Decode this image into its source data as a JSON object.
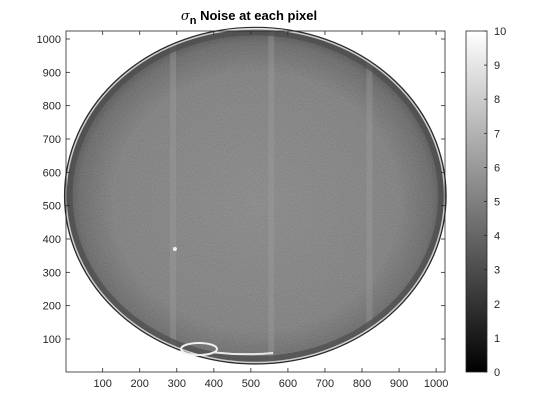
{
  "chart_data": {
    "type": "heatmap",
    "title": {
      "symbol": "σ",
      "subscript": "n",
      "text": " Noise at each pixel"
    },
    "xlabel": "",
    "ylabel": "",
    "xlim": [
      1,
      1024
    ],
    "ylim": [
      1,
      1024
    ],
    "y_direction": "normal",
    "x_ticks": [
      100,
      200,
      300,
      400,
      500,
      600,
      700,
      800,
      900,
      1000
    ],
    "y_ticks": [
      100,
      200,
      300,
      400,
      500,
      600,
      700,
      800,
      900,
      1000
    ],
    "colormap": "gray",
    "color_range": [
      0,
      10
    ],
    "colorbar": {
      "location": "right",
      "ticks": [
        0,
        1,
        2,
        3,
        4,
        5,
        6,
        7,
        8,
        9,
        10
      ]
    },
    "grid": false,
    "regions": {
      "background_value": 10,
      "disk": {
        "center": [
          512,
          530
        ],
        "radius_x": 515,
        "radius_y": 505
      },
      "interior_mean_value": 4.5,
      "rim_value": 3.0,
      "vertical_streaks_x": [
        290,
        555,
        820
      ],
      "bright_spot": {
        "x": 295,
        "y": 370
      }
    }
  }
}
